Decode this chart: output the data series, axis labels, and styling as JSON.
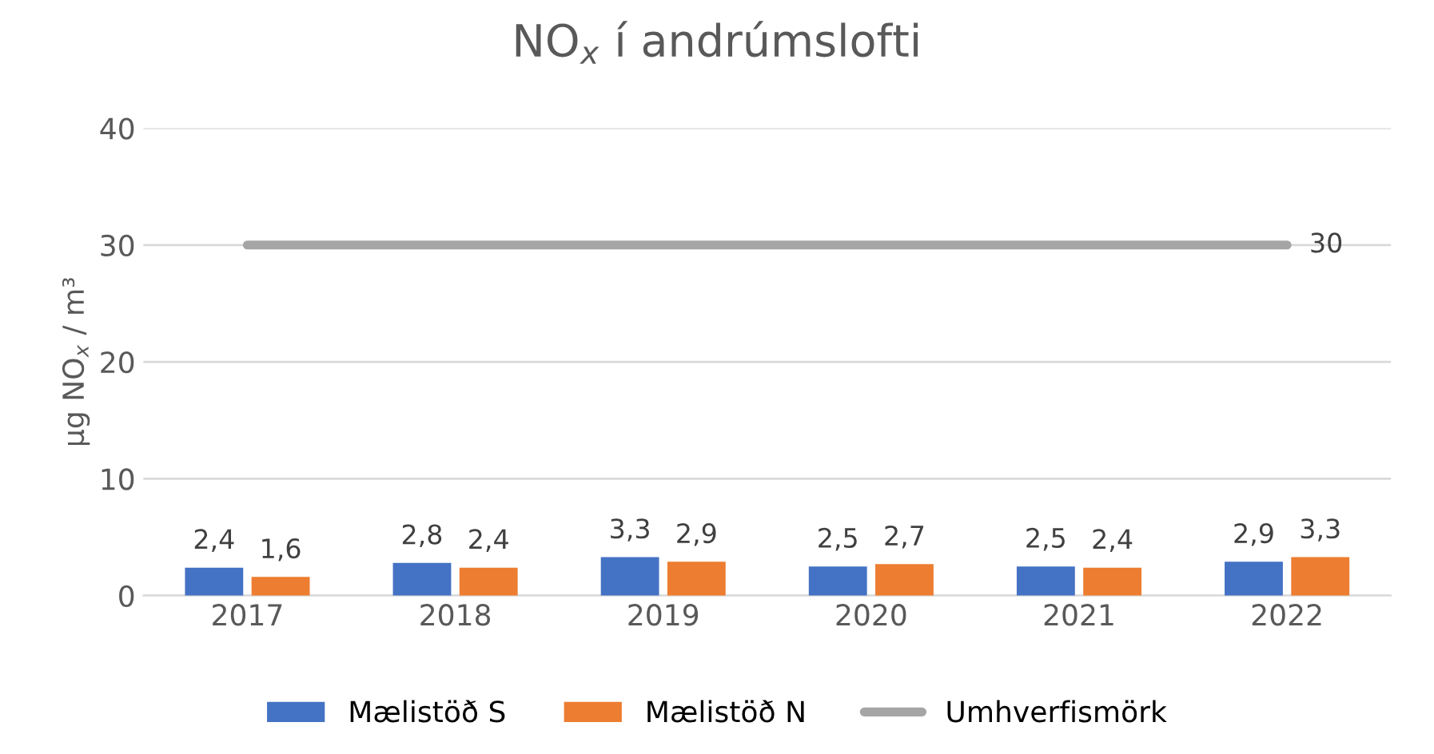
{
  "chart_data": {
    "type": "bar",
    "title": "NO$_{x}$ í andrúmslofti",
    "ylabel": "µg NO$_{x}$ / m³",
    "categories": [
      "2017",
      "2018",
      "2019",
      "2020",
      "2021",
      "2022"
    ],
    "series": [
      {
        "name": "Mælistöð S",
        "color": "#4472c4",
        "values": [
          2.4,
          2.8,
          3.3,
          2.5,
          2.5,
          2.9
        ],
        "value_labels": [
          "2,4",
          "2,8",
          "3,3",
          "2,5",
          "2,5",
          "2,9"
        ]
      },
      {
        "name": "Mælistöð N",
        "color": "#ed7d31",
        "values": [
          1.6,
          2.4,
          2.9,
          2.7,
          2.4,
          3.3
        ],
        "value_labels": [
          "1,6",
          "2,4",
          "2,9",
          "2,7",
          "2,4",
          "3,3"
        ]
      },
      {
        "name": "Umhverfismörk",
        "type": "line",
        "color": "#a5a5a5",
        "values": [
          30,
          30,
          30,
          30,
          30,
          30
        ],
        "value_labels": [
          null,
          null,
          null,
          null,
          null,
          "30"
        ]
      }
    ],
    "ylim": [
      0,
      40
    ],
    "yticks": [
      0,
      10,
      20,
      30,
      40
    ],
    "grid": "y",
    "legend": "bottom"
  }
}
